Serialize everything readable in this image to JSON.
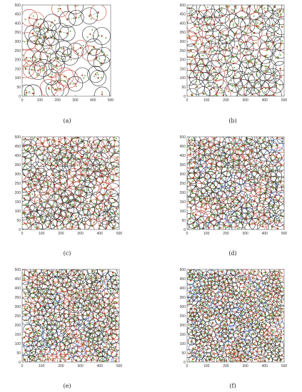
{
  "figure": {
    "panels": [
      {
        "id": "a",
        "caption": "(a)"
      },
      {
        "id": "b",
        "caption": "(b)"
      },
      {
        "id": "c",
        "caption": "(c)"
      },
      {
        "id": "d",
        "caption": "(d)"
      },
      {
        "id": "e",
        "caption": "(e)"
      },
      {
        "id": "f",
        "caption": "(f)"
      }
    ]
  },
  "colors": {
    "circle_red": "#c0392b",
    "circle_black": "#222222",
    "circle_blue": "#2b4ea8",
    "node_fill": "#7ab648",
    "link_dash": "#1f3b8a",
    "path_red": "#c0392b"
  },
  "chart_data": [
    {
      "panel": "a",
      "type": "scatter",
      "title": "",
      "xlabel": "",
      "ylabel": "",
      "xlim": [
        0,
        500
      ],
      "ylim": [
        0,
        500
      ],
      "xticks": [
        "0",
        "100",
        "200",
        "300",
        "400",
        "500"
      ],
      "yticks": [
        "0",
        "50",
        "100",
        "150",
        "200",
        "250",
        "300",
        "350",
        "400",
        "450",
        "500"
      ],
      "points": [
        [
          25,
          20
        ],
        [
          62,
          15
        ],
        [
          150,
          45
        ],
        [
          185,
          35
        ],
        [
          215,
          40
        ],
        [
          300,
          68
        ],
        [
          452,
          10
        ],
        [
          210,
          75
        ],
        [
          165,
          105
        ],
        [
          240,
          108
        ],
        [
          265,
          95
        ],
        [
          340,
          115
        ],
        [
          415,
          120
        ],
        [
          430,
          100
        ],
        [
          20,
          150
        ],
        [
          55,
          145
        ],
        [
          90,
          140
        ],
        [
          120,
          155
        ],
        [
          175,
          150
        ],
        [
          195,
          170
        ],
        [
          25,
          210
        ],
        [
          60,
          215
        ],
        [
          100,
          205
        ],
        [
          145,
          220
        ],
        [
          200,
          205
        ],
        [
          235,
          230
        ],
        [
          270,
          215
        ],
        [
          380,
          235
        ],
        [
          420,
          210
        ],
        [
          450,
          180
        ],
        [
          30,
          300
        ],
        [
          75,
          290
        ],
        [
          115,
          280
        ],
        [
          165,
          275
        ],
        [
          235,
          260
        ],
        [
          300,
          248
        ],
        [
          330,
          265
        ],
        [
          405,
          270
        ],
        [
          460,
          225
        ],
        [
          60,
          345
        ],
        [
          85,
          330
        ],
        [
          135,
          325
        ],
        [
          165,
          320
        ],
        [
          215,
          355
        ],
        [
          255,
          345
        ],
        [
          385,
          340
        ],
        [
          450,
          330
        ],
        [
          40,
          430
        ],
        [
          80,
          420
        ],
        [
          105,
          380
        ],
        [
          145,
          365
        ],
        [
          170,
          405
        ],
        [
          255,
          420
        ],
        [
          305,
          430
        ],
        [
          380,
          440
        ],
        [
          430,
          460
        ],
        [
          215,
          480
        ],
        [
          300,
          495
        ]
      ]
    },
    {
      "panel": "b",
      "type": "scatter",
      "title": "",
      "xlabel": "",
      "ylabel": "",
      "xlim": [
        0,
        500
      ],
      "ylim": [
        0,
        500
      ],
      "xticks": [
        "0",
        "100",
        "200",
        "300",
        "400",
        "500"
      ],
      "yticks": [
        "0",
        "50",
        "100",
        "150",
        "200",
        "250",
        "300",
        "350",
        "400",
        "450",
        "500"
      ],
      "points_count": 120
    },
    {
      "panel": "c",
      "type": "scatter",
      "title": "",
      "xlabel": "",
      "ylabel": "",
      "xlim": [
        0,
        500
      ],
      "ylim": [
        0,
        500
      ],
      "xticks": [
        "0",
        "100",
        "200",
        "300",
        "400",
        "500"
      ],
      "yticks": [
        "0",
        "50",
        "100",
        "150",
        "200",
        "250",
        "300",
        "350",
        "400",
        "450",
        "500"
      ],
      "points_count": 180
    },
    {
      "panel": "d",
      "type": "scatter",
      "title": "",
      "xlabel": "",
      "ylabel": "",
      "xlim": [
        0,
        500
      ],
      "ylim": [
        0,
        500
      ],
      "xticks": [
        "0",
        "100",
        "200",
        "300",
        "400",
        "500"
      ],
      "yticks": [
        "0",
        "50",
        "100",
        "150",
        "200",
        "250",
        "300",
        "350",
        "400",
        "450",
        "500"
      ],
      "points_count": 220
    },
    {
      "panel": "e",
      "type": "scatter",
      "title": "",
      "xlabel": "",
      "ylabel": "",
      "xlim": [
        0,
        500
      ],
      "ylim": [
        0,
        500
      ],
      "xticks": [
        "0",
        "100",
        "200",
        "300",
        "400",
        "500"
      ],
      "yticks": [
        "0",
        "50",
        "100",
        "150",
        "200",
        "250",
        "300",
        "350",
        "400",
        "450",
        "500"
      ],
      "points_count": 260
    },
    {
      "panel": "f",
      "type": "scatter",
      "title": "",
      "xlabel": "",
      "ylabel": "",
      "xlim": [
        0,
        500
      ],
      "ylim": [
        0,
        500
      ],
      "xticks": [
        "0",
        "100",
        "200",
        "300",
        "400",
        "500"
      ],
      "yticks": [
        "0",
        "50",
        "100",
        "150",
        "200",
        "250",
        "300",
        "350",
        "400",
        "450",
        "500"
      ],
      "points_count": 300
    }
  ]
}
